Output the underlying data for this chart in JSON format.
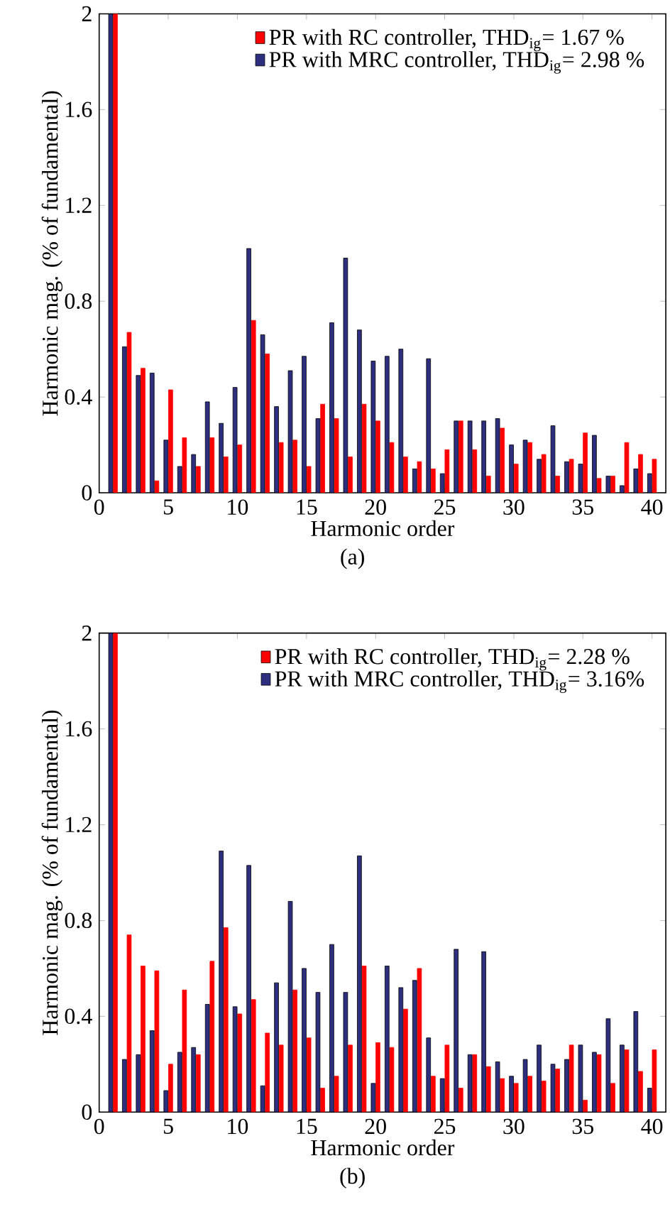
{
  "chart_data": [
    {
      "type": "bar",
      "xlabel": "Harmonic order",
      "ylabel": "Harmonic mag. (% of fundamental)",
      "annotations": [
        "(a)"
      ],
      "legend": "top right",
      "x": [
        1,
        2,
        3,
        4,
        5,
        6,
        7,
        8,
        9,
        10,
        11,
        12,
        13,
        14,
        15,
        16,
        17,
        18,
        19,
        20,
        21,
        22,
        23,
        24,
        25,
        26,
        27,
        28,
        29,
        30,
        31,
        32,
        33,
        34,
        35,
        36,
        37,
        38,
        39,
        40
      ],
      "xlim": [
        0,
        41
      ],
      "xticks": [
        0,
        5,
        10,
        15,
        20,
        25,
        30,
        35,
        40
      ],
      "ylim": [
        0,
        2
      ],
      "yticks": [
        0,
        0.4,
        0.8,
        1.2,
        1.6,
        2
      ],
      "series": [
        {
          "name": "PR with RC controller, THD$_{ig}$= 1.67 %",
          "color": "#ff0000",
          "values": [
            2,
            0.67,
            0.52,
            0.05,
            0.43,
            0.23,
            0.11,
            0.23,
            0.15,
            0.2,
            0.72,
            0.58,
            0.21,
            0.22,
            0.11,
            0.37,
            0.31,
            0.15,
            0.37,
            0.3,
            0.21,
            0.15,
            0.13,
            0.1,
            0.18,
            0.3,
            0.18,
            0.07,
            0.27,
            0.12,
            0.21,
            0.16,
            0.07,
            0.14,
            0.25,
            0.06,
            0.07,
            0.21,
            0.16,
            0.14
          ]
        },
        {
          "name": "PR with MRC controller, THD$_{ig}$= 2.98 %",
          "color": "#2e2e7e",
          "values": [
            2,
            0.61,
            0.49,
            0.5,
            0.22,
            0.11,
            0.16,
            0.38,
            0.29,
            0.44,
            1.02,
            0.66,
            0.36,
            0.51,
            0.57,
            0.31,
            0.71,
            0.98,
            0.68,
            0.55,
            0.57,
            0.6,
            0.1,
            0.56,
            0.08,
            0.3,
            0.3,
            0.3,
            0.31,
            0.2,
            0.22,
            0.14,
            0.28,
            0.13,
            0.12,
            0.24,
            0.07,
            0.03,
            0.1,
            0.08
          ]
        }
      ]
    },
    {
      "type": "bar",
      "xlabel": "Harmonic order",
      "ylabel": "Harmonic mag. (% of fundamental)",
      "annotations": [
        "(b)"
      ],
      "legend": "top right",
      "x": [
        1,
        2,
        3,
        4,
        5,
        6,
        7,
        8,
        9,
        10,
        11,
        12,
        13,
        14,
        15,
        16,
        17,
        18,
        19,
        20,
        21,
        22,
        23,
        24,
        25,
        26,
        27,
        28,
        29,
        30,
        31,
        32,
        33,
        34,
        35,
        36,
        37,
        38,
        39,
        40
      ],
      "xlim": [
        0,
        41
      ],
      "xticks": [
        0,
        5,
        10,
        15,
        20,
        25,
        30,
        35,
        40
      ],
      "ylim": [
        0,
        2
      ],
      "yticks": [
        0,
        0.4,
        0.8,
        1.2,
        1.6,
        2
      ],
      "series": [
        {
          "name": "PR with RC controller, THD$_{ig}$= 2.28 %",
          "color": "#ff0000",
          "values": [
            2,
            0.74,
            0.61,
            0.59,
            0.2,
            0.51,
            0.24,
            0.63,
            0.77,
            0.41,
            0.47,
            0.33,
            0.28,
            0.51,
            0.31,
            0.1,
            0.15,
            0.28,
            0.61,
            0.29,
            0.27,
            0.43,
            0.6,
            0.15,
            0.28,
            0.1,
            0.24,
            0.19,
            0.14,
            0.12,
            0.15,
            0.13,
            0.18,
            0.28,
            0.05,
            0.24,
            0.12,
            0.26,
            0.17,
            0.26
          ]
        },
        {
          "name": "PR with MRC controller, THD$_{ig}$= 3.16%",
          "color": "#2e2e7e",
          "values": [
            2,
            0.22,
            0.24,
            0.34,
            0.09,
            0.25,
            0.27,
            0.45,
            1.09,
            0.44,
            1.03,
            0.11,
            0.54,
            0.88,
            0.6,
            0.5,
            0.7,
            0.5,
            1.07,
            0.12,
            0.61,
            0.52,
            0.55,
            0.31,
            0.14,
            0.68,
            0.24,
            0.67,
            0.21,
            0.15,
            0.22,
            0.28,
            0.2,
            0.22,
            0.28,
            0.25,
            0.39,
            0.28,
            0.42,
            0.1
          ]
        }
      ]
    }
  ]
}
